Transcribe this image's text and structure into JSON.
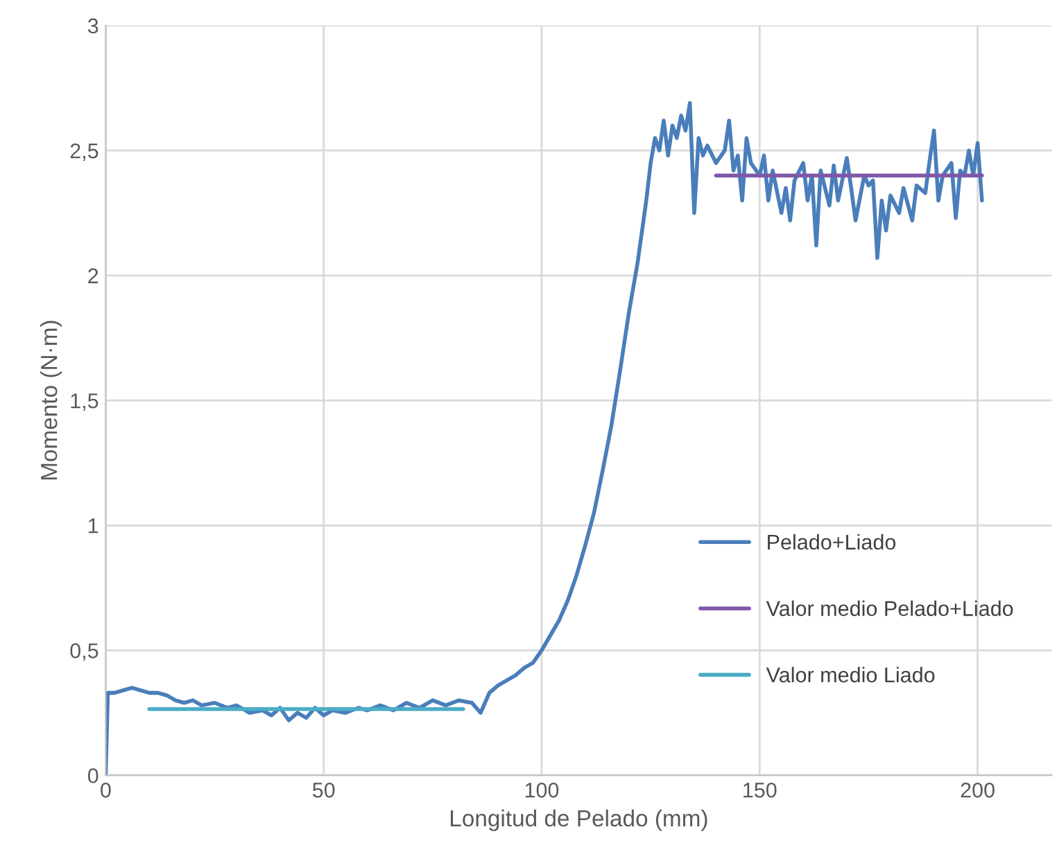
{
  "chart_data": {
    "type": "line",
    "xlabel": "Longitud de Pelado (mm)",
    "ylabel": "Momento (N·m)",
    "xlim": [
      0,
      217
    ],
    "xticks": [
      0,
      50,
      100,
      150,
      200
    ],
    "ylim": [
      0,
      3
    ],
    "yticks": [
      {
        "value": 0,
        "label": "0"
      },
      {
        "value": 0.5,
        "label": "0,5"
      },
      {
        "value": 1,
        "label": "1"
      },
      {
        "value": 1.5,
        "label": "1,5"
      },
      {
        "value": 2,
        "label": "2"
      },
      {
        "value": 2.5,
        "label": "2,5"
      },
      {
        "value": 3,
        "label": "3"
      }
    ],
    "grid": true,
    "legend": "right",
    "series": [
      {
        "name": "Pelado+Liado",
        "color": "#4a7ebb",
        "x": [
          0,
          0.5,
          2,
          4,
          6,
          8,
          10,
          12,
          14,
          16,
          18,
          20,
          22,
          25,
          28,
          30,
          33,
          36,
          38,
          40,
          42,
          44,
          46,
          48,
          50,
          52,
          55,
          58,
          60,
          63,
          66,
          69,
          72,
          75,
          78,
          81,
          84,
          86,
          88,
          90,
          92,
          94,
          96,
          98,
          100,
          102,
          104,
          106,
          108,
          110,
          112,
          114,
          116,
          118,
          120,
          122,
          124,
          125,
          126,
          127,
          128,
          129,
          130,
          131,
          132,
          133,
          134,
          135,
          136,
          137,
          138,
          140,
          142,
          143,
          144,
          145,
          146,
          147,
          148,
          150,
          151,
          152,
          153,
          155,
          156,
          157,
          158,
          160,
          161,
          162,
          163,
          164,
          166,
          167,
          168,
          170,
          171,
          172,
          174,
          175,
          176,
          177,
          178,
          179,
          180,
          182,
          183,
          185,
          186,
          188,
          189,
          190,
          191,
          192,
          194,
          195,
          196,
          197,
          198,
          199,
          200,
          201
        ],
        "values": [
          0,
          0.33,
          0.33,
          0.34,
          0.35,
          0.34,
          0.33,
          0.33,
          0.32,
          0.3,
          0.29,
          0.3,
          0.28,
          0.29,
          0.27,
          0.28,
          0.25,
          0.26,
          0.24,
          0.27,
          0.22,
          0.25,
          0.23,
          0.27,
          0.24,
          0.26,
          0.25,
          0.27,
          0.26,
          0.28,
          0.26,
          0.29,
          0.27,
          0.3,
          0.28,
          0.3,
          0.29,
          0.25,
          0.33,
          0.36,
          0.38,
          0.4,
          0.43,
          0.45,
          0.5,
          0.56,
          0.62,
          0.7,
          0.8,
          0.92,
          1.05,
          1.22,
          1.4,
          1.62,
          1.85,
          2.05,
          2.3,
          2.45,
          2.55,
          2.5,
          2.62,
          2.48,
          2.6,
          2.55,
          2.64,
          2.58,
          2.69,
          2.25,
          2.55,
          2.48,
          2.52,
          2.45,
          2.5,
          2.62,
          2.42,
          2.48,
          2.3,
          2.55,
          2.45,
          2.4,
          2.48,
          2.3,
          2.42,
          2.25,
          2.35,
          2.22,
          2.38,
          2.45,
          2.3,
          2.4,
          2.12,
          2.42,
          2.28,
          2.44,
          2.3,
          2.47,
          2.35,
          2.22,
          2.4,
          2.36,
          2.38,
          2.07,
          2.3,
          2.18,
          2.32,
          2.25,
          2.35,
          2.22,
          2.36,
          2.33,
          2.46,
          2.58,
          2.3,
          2.4,
          2.45,
          2.23,
          2.42,
          2.4,
          2.5,
          2.4,
          2.53,
          2.3
        ]
      },
      {
        "name": "Valor medio Pelado+Liado",
        "color": "#7e57a8",
        "x": [
          140,
          201
        ],
        "values": [
          2.4,
          2.4
        ]
      },
      {
        "name": "Valor medio Liado",
        "color": "#4bacc6",
        "x": [
          10,
          82
        ],
        "values": [
          0.265,
          0.265
        ]
      }
    ]
  }
}
